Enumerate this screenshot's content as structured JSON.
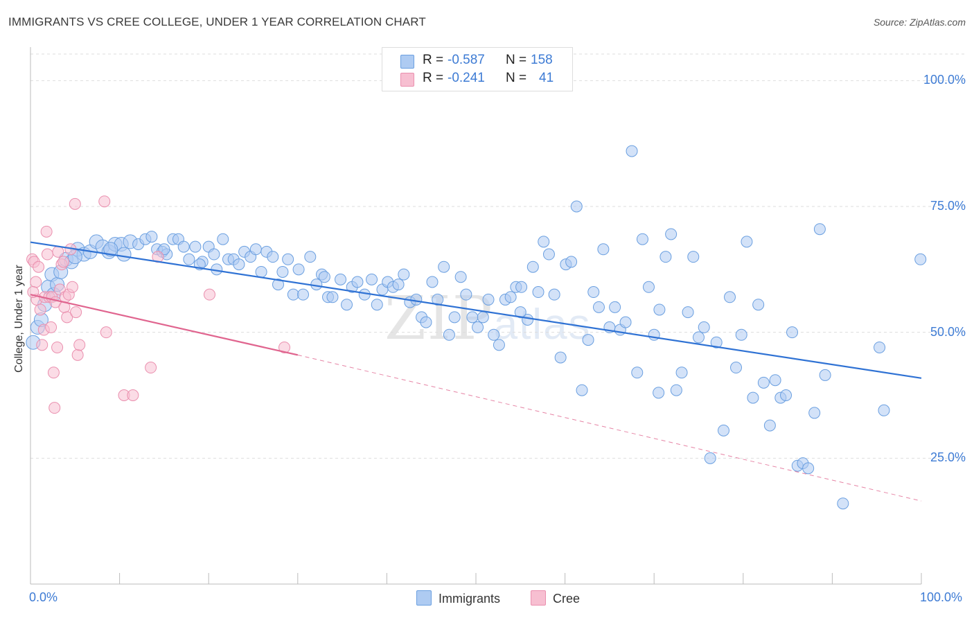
{
  "header": {
    "title": "IMMIGRANTS VS CREE COLLEGE, UNDER 1 YEAR CORRELATION CHART",
    "source": "Source: ZipAtlas.com"
  },
  "watermark": {
    "zip": "ZIP",
    "atlas": "atlas"
  },
  "legend": {
    "rows": [
      {
        "r_label": "R =",
        "r_value": "-0.587",
        "n_label": "N =",
        "n_value": "158",
        "color": "#aecbf2"
      },
      {
        "r_label": "R =",
        "r_value": "-0.241",
        "n_label": "N =",
        "n_value": "41",
        "color": "#f7bfd1"
      }
    ]
  },
  "bottom_legend": {
    "immigrants": "Immigrants",
    "cree": "Cree"
  },
  "colors": {
    "immigrants_fill": "#aecbf2",
    "immigrants_stroke": "#6a9fe0",
    "immigrants_line": "#2f72d4",
    "cree_fill": "#f7bfd1",
    "cree_stroke": "#ea8fae",
    "cree_line": "#e0658f",
    "tick_text": "#3d7bd4",
    "grid": "#dddddd"
  },
  "chart_data": {
    "type": "scatter",
    "title": "IMMIGRANTS VS CREE COLLEGE, UNDER 1 YEAR CORRELATION CHART",
    "xlabel": "",
    "ylabel": "College, Under 1 year",
    "xlim": [
      0,
      100
    ],
    "ylim": [
      0,
      105
    ],
    "x_tick_labels": [
      "0.0%",
      "100.0%"
    ],
    "y_ticks": [
      {
        "value": 25,
        "label": "25.0%"
      },
      {
        "value": 50,
        "label": "50.0%"
      },
      {
        "value": 75,
        "label": "75.0%"
      },
      {
        "value": 100,
        "label": "100.0%"
      }
    ],
    "series": [
      {
        "name": "Immigrants",
        "r": -0.587,
        "n": 158,
        "trend": {
          "x": [
            0,
            100
          ],
          "y": [
            67.9,
            40.9
          ]
        },
        "points": [
          [
            0.3,
            48
          ],
          [
            0.8,
            51
          ],
          [
            1.2,
            52.5
          ],
          [
            1.6,
            55.5
          ],
          [
            2.0,
            59
          ],
          [
            2.4,
            61.5
          ],
          [
            2.6,
            57.5
          ],
          [
            3.0,
            59.5
          ],
          [
            3.4,
            62
          ],
          [
            4.0,
            64.5
          ],
          [
            4.6,
            64
          ],
          [
            5.3,
            66.5
          ],
          [
            6.0,
            65.5
          ],
          [
            6.7,
            66
          ],
          [
            7.4,
            68
          ],
          [
            8.1,
            67
          ],
          [
            8.8,
            66
          ],
          [
            9.5,
            67.5
          ],
          [
            10.2,
            67.5
          ],
          [
            10.5,
            65.5
          ],
          [
            11.2,
            68
          ],
          [
            12.1,
            67.5
          ],
          [
            12.9,
            68.5
          ],
          [
            13.6,
            69
          ],
          [
            14.2,
            66.5
          ],
          [
            14.8,
            66
          ],
          [
            15.3,
            65.5
          ],
          [
            16.0,
            68.5
          ],
          [
            16.6,
            68.5
          ],
          [
            17.2,
            67
          ],
          [
            17.8,
            64.5
          ],
          [
            18.5,
            67
          ],
          [
            19.3,
            64
          ],
          [
            20.0,
            67
          ],
          [
            20.6,
            65.5
          ],
          [
            20.9,
            62.5
          ],
          [
            21.6,
            68.5
          ],
          [
            22.2,
            64.5
          ],
          [
            22.8,
            64.5
          ],
          [
            23.4,
            63.5
          ],
          [
            24.0,
            66
          ],
          [
            24.7,
            65
          ],
          [
            25.3,
            66.5
          ],
          [
            25.9,
            62
          ],
          [
            26.5,
            66
          ],
          [
            27.2,
            65
          ],
          [
            27.8,
            59.5
          ],
          [
            28.3,
            62
          ],
          [
            28.9,
            64.5
          ],
          [
            29.5,
            57.5
          ],
          [
            30.1,
            62.5
          ],
          [
            30.6,
            57.5
          ],
          [
            31.4,
            65
          ],
          [
            32.1,
            59.5
          ],
          [
            32.7,
            61.5
          ],
          [
            33.4,
            57
          ],
          [
            33.9,
            57
          ],
          [
            34.8,
            60.5
          ],
          [
            35.5,
            55.5
          ],
          [
            36.1,
            59
          ],
          [
            36.7,
            60
          ],
          [
            37.5,
            57.5
          ],
          [
            38.3,
            60.5
          ],
          [
            38.9,
            55.5
          ],
          [
            39.5,
            58.5
          ],
          [
            40.1,
            60
          ],
          [
            40.7,
            59
          ],
          [
            41.3,
            59.5
          ],
          [
            41.9,
            61.5
          ],
          [
            42.6,
            56
          ],
          [
            43.3,
            56.5
          ],
          [
            43.9,
            53
          ],
          [
            44.4,
            52
          ],
          [
            45.1,
            60
          ],
          [
            45.7,
            56.5
          ],
          [
            46.4,
            63
          ],
          [
            47.0,
            49.5
          ],
          [
            47.6,
            53
          ],
          [
            48.3,
            61
          ],
          [
            48.9,
            57.5
          ],
          [
            49.6,
            53
          ],
          [
            50.2,
            51
          ],
          [
            50.8,
            53
          ],
          [
            51.4,
            56.5
          ],
          [
            52.0,
            49.5
          ],
          [
            52.6,
            47.5
          ],
          [
            53.3,
            56.5
          ],
          [
            53.9,
            57
          ],
          [
            54.5,
            59
          ],
          [
            55.1,
            59
          ],
          [
            55.8,
            52.5
          ],
          [
            56.4,
            63
          ],
          [
            57.0,
            58
          ],
          [
            57.6,
            68
          ],
          [
            58.2,
            65.5
          ],
          [
            58.8,
            57.5
          ],
          [
            59.5,
            45
          ],
          [
            60.1,
            63.5
          ],
          [
            60.7,
            64
          ],
          [
            61.3,
            75
          ],
          [
            61.9,
            38.5
          ],
          [
            62.6,
            48.5
          ],
          [
            63.2,
            58
          ],
          [
            63.8,
            55
          ],
          [
            64.3,
            66.5
          ],
          [
            65.0,
            51
          ],
          [
            65.6,
            55
          ],
          [
            66.2,
            50.5
          ],
          [
            66.8,
            52
          ],
          [
            67.5,
            86
          ],
          [
            68.1,
            42
          ],
          [
            68.7,
            68.5
          ],
          [
            69.4,
            59
          ],
          [
            70.0,
            49.5
          ],
          [
            70.6,
            54.5
          ],
          [
            71.3,
            65
          ],
          [
            71.9,
            69.5
          ],
          [
            72.5,
            38.5
          ],
          [
            73.1,
            42
          ],
          [
            73.8,
            54
          ],
          [
            74.4,
            65
          ],
          [
            75.0,
            49
          ],
          [
            75.6,
            51
          ],
          [
            76.3,
            25
          ],
          [
            77.0,
            48
          ],
          [
            77.8,
            30.5
          ],
          [
            78.5,
            57
          ],
          [
            79.2,
            43
          ],
          [
            79.8,
            49.5
          ],
          [
            80.4,
            68
          ],
          [
            81.1,
            37
          ],
          [
            81.7,
            55.5
          ],
          [
            82.3,
            40
          ],
          [
            83.0,
            31.5
          ],
          [
            83.6,
            40.5
          ],
          [
            84.2,
            37
          ],
          [
            84.8,
            37.5
          ],
          [
            85.5,
            50
          ],
          [
            86.1,
            23.5
          ],
          [
            86.7,
            24
          ],
          [
            87.3,
            23
          ],
          [
            88.0,
            34
          ],
          [
            88.6,
            70.5
          ],
          [
            89.2,
            41.5
          ],
          [
            91.2,
            16
          ],
          [
            95.3,
            47
          ],
          [
            95.8,
            34.5
          ],
          [
            99.9,
            64.5
          ],
          [
            5.0,
            65
          ],
          [
            9.0,
            66.5
          ],
          [
            15.0,
            66.5
          ],
          [
            19.0,
            63.5
          ],
          [
            33.0,
            61
          ],
          [
            55.0,
            54
          ],
          [
            70.5,
            38
          ]
        ]
      },
      {
        "name": "Cree",
        "r": -0.241,
        "n": 41,
        "trend": {
          "x": [
            0,
            30
          ],
          "y": [
            57.5,
            45.5
          ]
        },
        "trend_dashed": {
          "x": [
            30,
            100
          ],
          "y": [
            45.5,
            16.5
          ]
        },
        "points": [
          [
            0.2,
            64.5
          ],
          [
            0.4,
            64
          ],
          [
            0.6,
            60
          ],
          [
            0.7,
            56.5
          ],
          [
            0.9,
            63
          ],
          [
            1.1,
            54.5
          ],
          [
            1.3,
            47.5
          ],
          [
            1.5,
            50.5
          ],
          [
            1.6,
            57
          ],
          [
            1.8,
            70
          ],
          [
            1.9,
            65.5
          ],
          [
            2.1,
            57
          ],
          [
            2.3,
            51
          ],
          [
            2.4,
            57
          ],
          [
            2.6,
            42
          ],
          [
            2.7,
            35
          ],
          [
            2.8,
            56
          ],
          [
            3.0,
            47
          ],
          [
            3.1,
            66
          ],
          [
            3.3,
            58.5
          ],
          [
            3.5,
            63.5
          ],
          [
            3.7,
            64
          ],
          [
            3.8,
            55
          ],
          [
            3.9,
            57
          ],
          [
            4.1,
            53
          ],
          [
            4.3,
            57.5
          ],
          [
            4.5,
            66.5
          ],
          [
            4.7,
            59
          ],
          [
            5.0,
            75.5
          ],
          [
            5.1,
            54
          ],
          [
            5.3,
            45.5
          ],
          [
            5.5,
            47.5
          ],
          [
            8.3,
            76
          ],
          [
            8.5,
            50
          ],
          [
            10.5,
            37.5
          ],
          [
            11.5,
            37.5
          ],
          [
            13.5,
            43
          ],
          [
            14.3,
            65
          ],
          [
            20.1,
            57.5
          ],
          [
            28.5,
            47
          ],
          [
            0.3,
            58
          ]
        ]
      }
    ]
  }
}
